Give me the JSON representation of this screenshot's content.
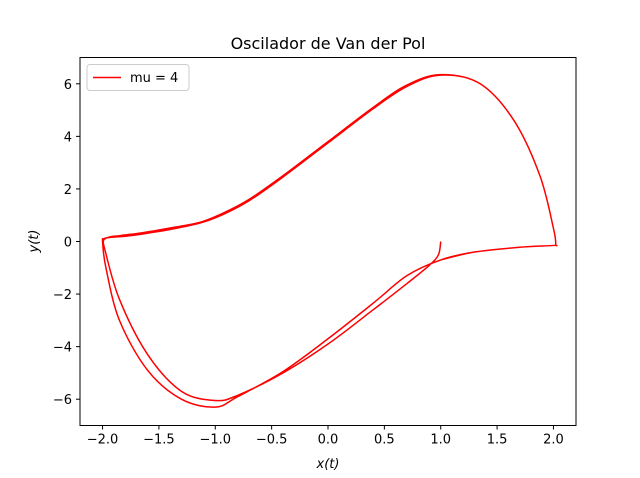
{
  "chart_data": {
    "type": "line",
    "title": "Oscilador de Van der Pol",
    "xlabel": "x(t)",
    "ylabel": "y(t)",
    "xlim": [
      -2.2,
      2.2
    ],
    "ylim": [
      -7.0,
      7.0
    ],
    "xticks": [
      -2.0,
      -1.5,
      -1.0,
      -0.5,
      0.0,
      0.5,
      1.0,
      1.5,
      2.0
    ],
    "xtick_labels": [
      "−2.0",
      "−1.5",
      "−1.0",
      "−0.5",
      "0.0",
      "0.5",
      "1.0",
      "1.5",
      "2.0"
    ],
    "yticks": [
      -6,
      -4,
      -2,
      0,
      2,
      4,
      6
    ],
    "ytick_labels": [
      "−6",
      "−4",
      "−2",
      "0",
      "2",
      "4",
      "6"
    ],
    "grid": false,
    "legend_position": "top-left",
    "series": [
      {
        "name": "mu = 4",
        "color": "#ff0000",
        "x": [
          1.0,
          0.98,
          0.9,
          0.7,
          0.4,
          0.0,
          -0.4,
          -0.8,
          -1.0,
          -1.3,
          -1.6,
          -1.85,
          -1.98,
          -1.99,
          -1.97,
          -1.95,
          -1.9,
          -1.85,
          -1.8,
          -1.7,
          -1.55,
          -1.35,
          -1.12,
          -0.92,
          -0.7,
          -0.4,
          0.0,
          0.4,
          0.7,
          1.0,
          1.35,
          1.65,
          1.88,
          2.0,
          2.02,
          2.0,
          1.7,
          1.3,
          1.0,
          0.7,
          0.4,
          0.0,
          -0.4,
          -0.8,
          -1.0,
          -1.3,
          -1.6,
          -1.85,
          -1.97,
          -2.0,
          -1.99,
          -1.96,
          -1.92,
          -1.86,
          -1.8,
          -1.7,
          -1.55,
          -1.35,
          -1.12,
          -0.92,
          -0.7,
          -0.4,
          0.0,
          0.4,
          0.7,
          1.0,
          1.35,
          1.65,
          1.88,
          2.0,
          2.02,
          2.0,
          1.7,
          1.3,
          1.0
        ],
        "y": [
          0.0,
          -0.5,
          -0.9,
          -1.6,
          -2.6,
          -3.9,
          -5.0,
          -5.85,
          -6.05,
          -5.7,
          -4.3,
          -2.2,
          -0.3,
          0.05,
          0.12,
          0.16,
          0.2,
          0.22,
          0.25,
          0.3,
          0.4,
          0.55,
          0.75,
          1.1,
          1.6,
          2.5,
          3.8,
          5.1,
          5.95,
          6.35,
          6.0,
          4.6,
          2.5,
          0.5,
          -0.1,
          -0.15,
          -0.22,
          -0.4,
          -0.7,
          -1.3,
          -2.35,
          -3.7,
          -4.95,
          -5.9,
          -6.3,
          -6.0,
          -4.9,
          -3.0,
          -1.0,
          0.0,
          0.1,
          0.14,
          0.16,
          0.18,
          0.2,
          0.25,
          0.35,
          0.5,
          0.72,
          1.05,
          1.55,
          2.45,
          3.75,
          5.05,
          5.9,
          6.33,
          6.0,
          4.6,
          2.5,
          0.5,
          -0.1,
          -0.15,
          -0.22,
          -0.4,
          -0.7
        ]
      }
    ]
  }
}
